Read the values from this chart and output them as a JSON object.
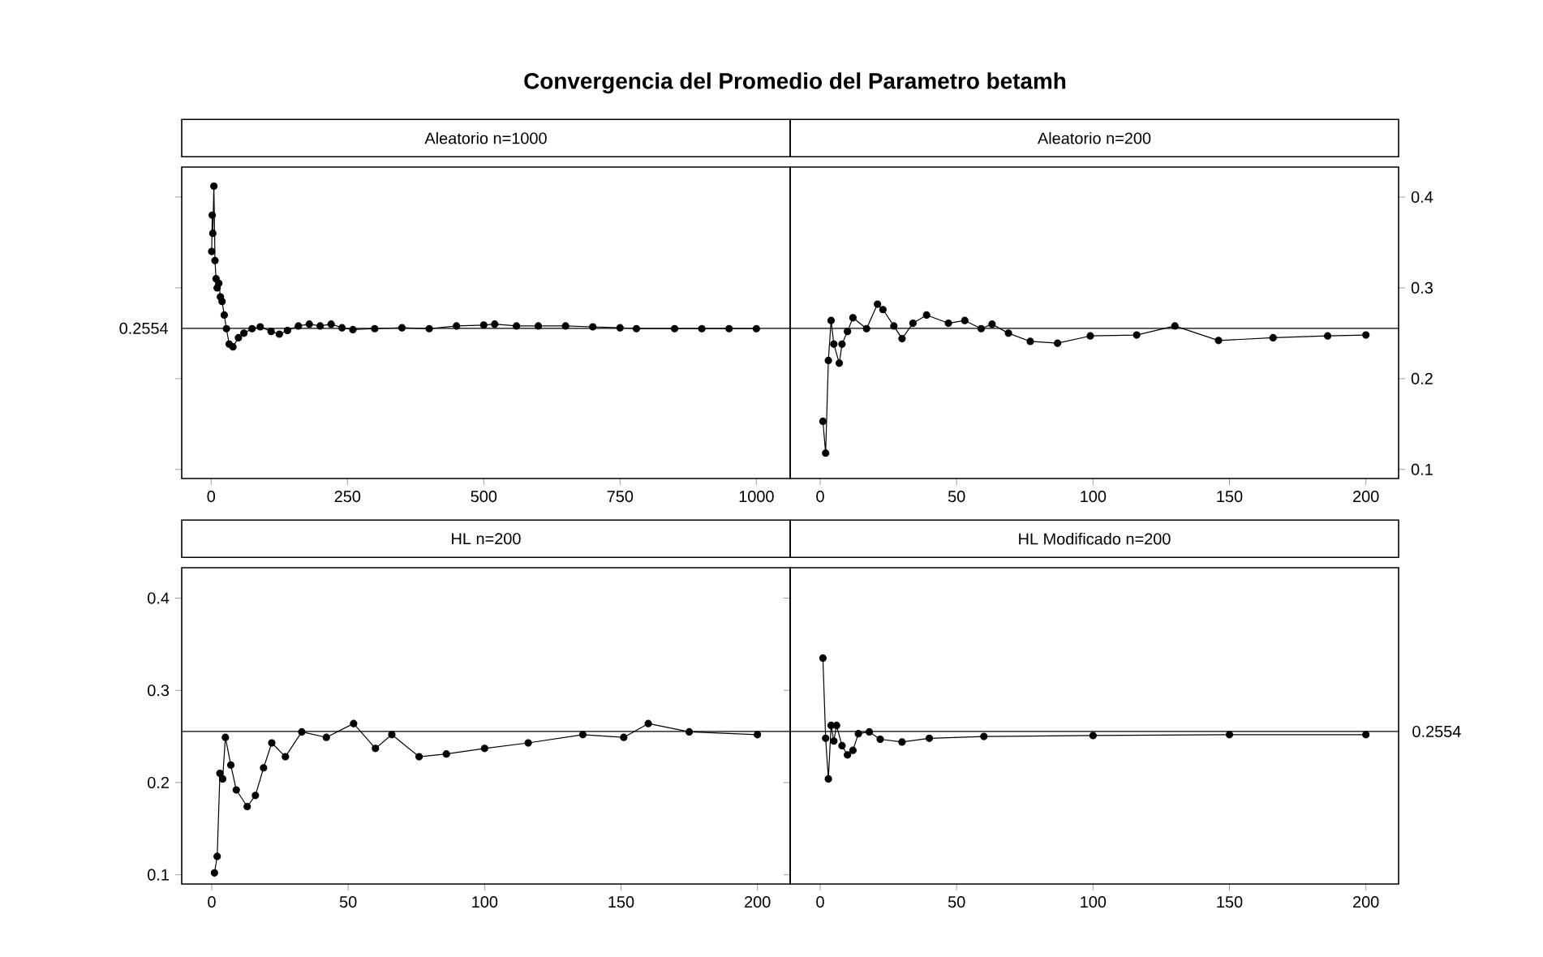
{
  "chart_data": [
    {
      "type": "line",
      "title": "Aleatorio n=1000",
      "annotations": [
        "Convergencia del Promedio del Parametro betamh"
      ],
      "marker": "circle",
      "tick_labels": "x",
      "xlim": [
        -54,
        1062
      ],
      "xticks": [
        0,
        250,
        500,
        750,
        1000
      ],
      "ylim": [
        0.09,
        0.433
      ],
      "yticks": [
        0.1,
        0.2,
        0.3,
        0.4
      ],
      "ref_lines": [
        {
          "axis": "y",
          "value": 0.2554,
          "label": "0.2554"
        }
      ],
      "series": [
        {
          "color": "#000000",
          "x": [
            1,
            2,
            3,
            5,
            7,
            9,
            11,
            14,
            17,
            20,
            24,
            28,
            33,
            40,
            50,
            60,
            75,
            90,
            110,
            125,
            140,
            160,
            180,
            200,
            220,
            240,
            260,
            300,
            350,
            400,
            450,
            500,
            520,
            560,
            600,
            650,
            700,
            750,
            780,
            850,
            900,
            950,
            1000
          ],
          "values": [
            0.34,
            0.38,
            0.36,
            0.412,
            0.33,
            0.31,
            0.3,
            0.305,
            0.29,
            0.285,
            0.27,
            0.255,
            0.238,
            0.235,
            0.245,
            0.25,
            0.255,
            0.257,
            0.252,
            0.249,
            0.253,
            0.258,
            0.26,
            0.258,
            0.26,
            0.256,
            0.254,
            0.255,
            0.256,
            0.255,
            0.258,
            0.259,
            0.26,
            0.258,
            0.258,
            0.258,
            0.257,
            0.256,
            0.255,
            0.255,
            0.255,
            0.255,
            0.255
          ]
        }
      ]
    },
    {
      "type": "line",
      "title": "Aleatorio n=200",
      "marker": "circle",
      "xlim": [
        -11,
        212
      ],
      "xticks": [
        0,
        50,
        100,
        150,
        200
      ],
      "ylim": [
        0.09,
        0.433
      ],
      "yticks": [
        0.1,
        0.2,
        0.3,
        0.4
      ],
      "ref_lines": [
        {
          "axis": "y",
          "value": 0.2554,
          "label": null
        }
      ],
      "series": [
        {
          "color": "#000000",
          "x": [
            1,
            2,
            3,
            4,
            5,
            7,
            8,
            10,
            12,
            17,
            21,
            23,
            27,
            30,
            34,
            39,
            47,
            53,
            59,
            63,
            69,
            77,
            87,
            99,
            116,
            130,
            146,
            166,
            186,
            200
          ],
          "values": [
            0.153,
            0.118,
            0.22,
            0.264,
            0.238,
            0.217,
            0.238,
            0.252,
            0.267,
            0.255,
            0.282,
            0.276,
            0.258,
            0.244,
            0.261,
            0.27,
            0.261,
            0.264,
            0.255,
            0.26,
            0.25,
            0.241,
            0.239,
            0.247,
            0.248,
            0.258,
            0.242,
            0.245,
            0.247,
            0.248
          ]
        }
      ]
    },
    {
      "type": "line",
      "title": "HL n=200",
      "marker": "circle",
      "xlim": [
        -11,
        212
      ],
      "xticks": [
        0,
        50,
        100,
        150,
        200
      ],
      "ylim": [
        0.09,
        0.433
      ],
      "yticks": [
        0.1,
        0.2,
        0.3,
        0.4
      ],
      "ref_lines": [
        {
          "axis": "y",
          "value": 0.2554,
          "label": null
        }
      ],
      "series": [
        {
          "color": "#000000",
          "x": [
            1,
            2,
            3,
            4,
            5,
            7,
            9,
            13,
            16,
            19,
            22,
            27,
            33,
            42,
            52,
            60,
            66,
            76,
            86,
            100,
            116,
            136,
            151,
            160,
            175,
            200
          ],
          "values": [
            0.102,
            0.12,
            0.21,
            0.204,
            0.249,
            0.219,
            0.192,
            0.174,
            0.186,
            0.216,
            0.243,
            0.228,
            0.255,
            0.249,
            0.264,
            0.237,
            0.252,
            0.228,
            0.231,
            0.237,
            0.243,
            0.252,
            0.249,
            0.264,
            0.255,
            0.252
          ]
        }
      ]
    },
    {
      "type": "line",
      "title": "HL Modificado n=200",
      "marker": "circle",
      "tick_labels": "x",
      "xlim": [
        -11,
        212
      ],
      "xticks": [
        0,
        50,
        100,
        150,
        200
      ],
      "ylim": [
        0.09,
        0.433
      ],
      "yticks": [
        0.1,
        0.2,
        0.3,
        0.4
      ],
      "ref_lines": [
        {
          "axis": "y",
          "value": 0.2554,
          "label": "0.2554"
        }
      ],
      "series": [
        {
          "color": "#000000",
          "x": [
            1,
            2,
            3,
            4,
            5,
            6,
            8,
            10,
            12,
            14,
            18,
            22,
            30,
            40,
            60,
            100,
            150,
            200
          ],
          "values": [
            0.335,
            0.248,
            0.204,
            0.262,
            0.245,
            0.262,
            0.24,
            0.23,
            0.235,
            0.253,
            0.255,
            0.247,
            0.244,
            0.248,
            0.25,
            0.251,
            0.252,
            0.252
          ]
        }
      ]
    }
  ]
}
